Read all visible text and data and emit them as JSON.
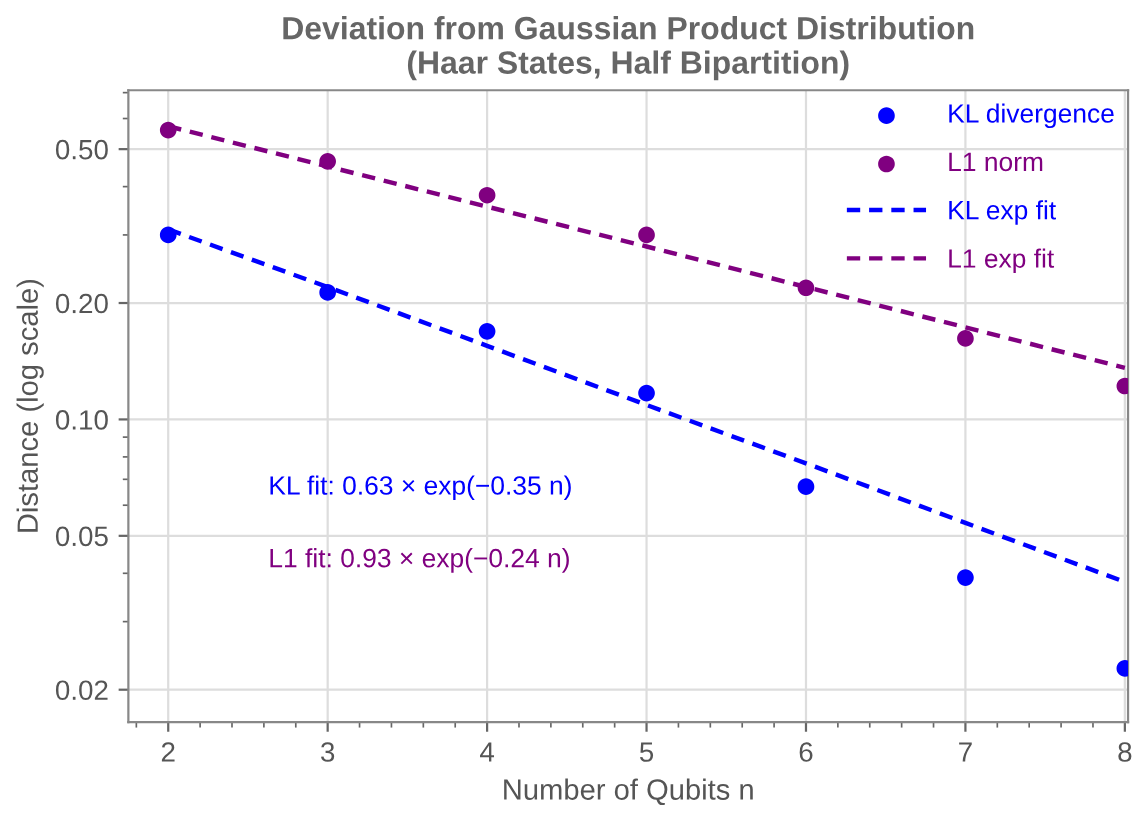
{
  "chart_data": {
    "type": "scatter",
    "title": "Deviation from Gaussian Product Distribution\n(Haar States, Half Bipartition)",
    "xlabel": "Number of Qubits n",
    "ylabel": "Distance (log scale)",
    "x": [
      2,
      3,
      4,
      5,
      6,
      7,
      8
    ],
    "series": [
      {
        "name": "KL divergence",
        "color": "#0000ff",
        "values": [
          0.3,
          0.213,
          0.169,
          0.117,
          0.067,
          0.039,
          0.0227
        ]
      },
      {
        "name": "L1 norm",
        "color": "#800080",
        "values": [
          0.56,
          0.465,
          0.38,
          0.3,
          0.219,
          0.162,
          0.122
        ]
      },
      {
        "name": "KL exp fit",
        "type": "line",
        "line_style": "dashed",
        "marker": "none",
        "color": "#0000ff",
        "values": [
          0.31,
          0.22,
          0.155,
          0.109,
          0.077,
          0.054,
          0.038
        ]
      },
      {
        "name": "L1 exp fit",
        "type": "line",
        "line_style": "dashed",
        "marker": "none",
        "color": "#800080",
        "values": [
          0.573,
          0.451,
          0.355,
          0.28,
          0.22,
          0.173,
          0.136
        ]
      }
    ],
    "annotations": [
      "KL fit: 0.63 × exp(−0.35 n)",
      "L1 fit: 0.93 × exp(−0.24 n)"
    ],
    "marker": "circle",
    "log": "y",
    "grid": true,
    "legend": "top right",
    "xlim": [
      1.75,
      8.02
    ],
    "ylim": [
      0.0165,
      0.71
    ],
    "xticks": [
      2,
      3,
      4,
      5,
      6,
      7,
      8
    ],
    "yticks": [
      {
        "value": 0.02,
        "label": "0.02"
      },
      {
        "value": 0.05,
        "label": "0.05"
      },
      {
        "value": 0.1,
        "label": "0.10"
      },
      {
        "value": 0.2,
        "label": "0.20"
      },
      {
        "value": 0.5,
        "label": "0.50"
      }
    ]
  }
}
